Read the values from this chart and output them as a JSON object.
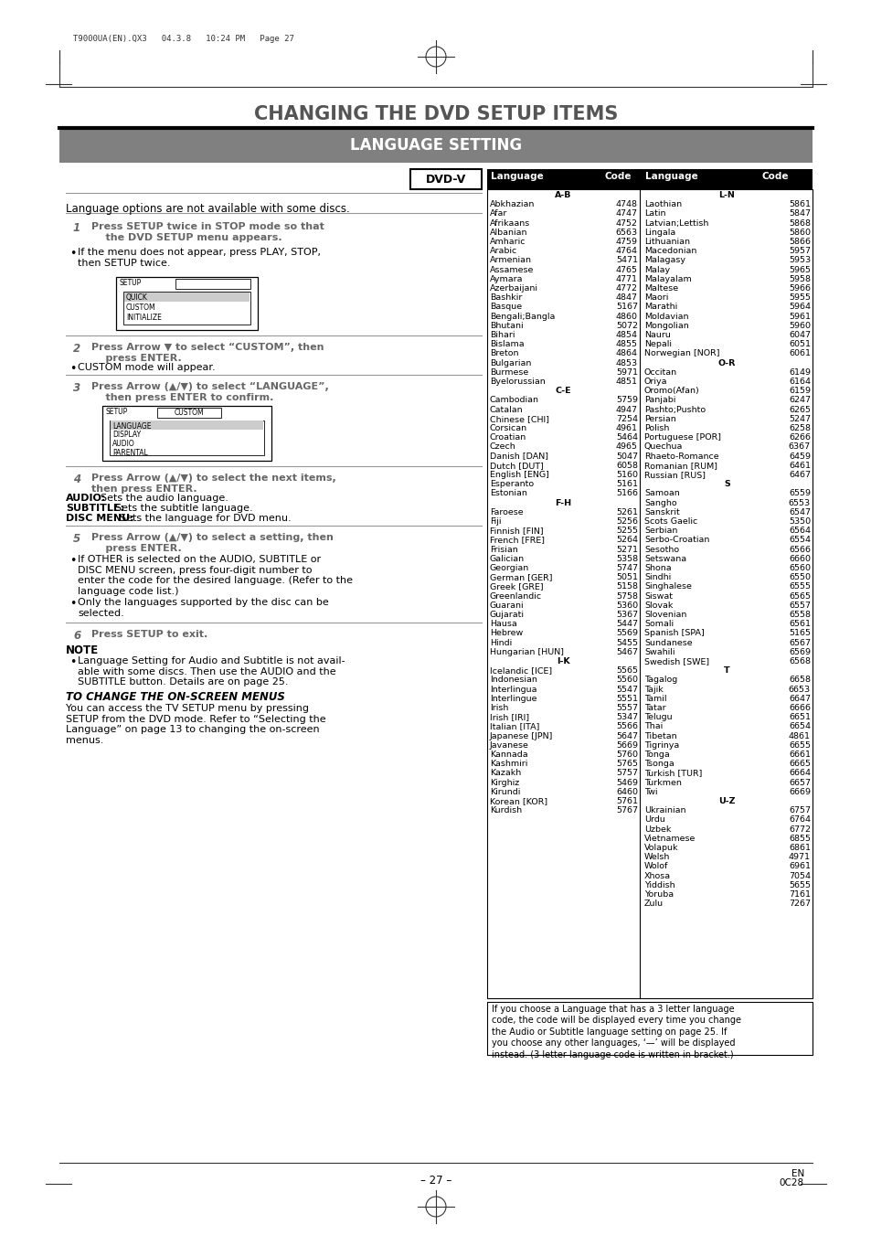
{
  "title": "CHANGING THE DVD SETUP ITEMS",
  "subtitle": "LANGUAGE SETTING",
  "header_text": "T9000UA(EN).QX3   04.3.8   10:24 PM   Page 27",
  "dvdv_label": "DVD-V",
  "intro_text": "Language options are not available with some discs.",
  "step1_bold": "Press SETUP twice in STOP mode so that\n    the DVD SETUP menu appears.",
  "step1_bullet": "If the menu does not appear, press PLAY, STOP,\nthen SETUP twice.",
  "step2_bold": "Press Arrow ▼ to select “CUSTOM”, then\n    press ENTER.",
  "step2_bullet": "CUSTOM mode will appear.",
  "step3_bold": "Press Arrow (▲/▼) to select “LANGUAGE”,\n    then press ENTER to confirm.",
  "step4_bold": "Press Arrow (▲/▼) to select the next items,\nthen press ENTER.",
  "step4_lines": [
    [
      "AUDIO:",
      "  Sets the audio language."
    ],
    [
      "SUBTITLE:",
      "  Sets the subtitle language."
    ],
    [
      "DISC MENU:",
      "  Sets the language for DVD menu."
    ]
  ],
  "step5_bold": "Press Arrow (▲/▼) to select a setting, then\n    press ENTER.",
  "step5_bullets": [
    "If OTHER is selected on the AUDIO, SUBTITLE or\nDISC MENU screen, press four-digit number to\nenter the code for the desired language. (Refer to the\nlanguage code list.)",
    "Only the languages supported by the disc can be\nselected."
  ],
  "step6_bold": "Press SETUP to exit.",
  "note_title": "NOTE",
  "note_bullet": "Language Setting for Audio and Subtitle is not avail-\nable with some discs. Then use the AUDIO and the\nSUBTITLE button. Details are on page 25.",
  "to_change_title": "TO CHANGE THE ON-SCREEN MENUS",
  "to_change_text": "You can access the TV SETUP menu by pressing\nSETUP from the DVD mode. Refer to “Selecting the\nLanguage” on page 13 to changing the on-screen\nmenus.",
  "footer_left": "– 27 –",
  "footer_right": "EN\n0C28",
  "lang_col1": [
    [
      "A-B",
      ""
    ],
    [
      "Abkhazian",
      "4748"
    ],
    [
      "Afar",
      "4747"
    ],
    [
      "Afrikaans",
      "4752"
    ],
    [
      "Albanian",
      "6563"
    ],
    [
      "Amharic",
      "4759"
    ],
    [
      "Arabic",
      "4764"
    ],
    [
      "Armenian",
      "5471"
    ],
    [
      "Assamese",
      "4765"
    ],
    [
      "Aymara",
      "4771"
    ],
    [
      "Azerbaijani",
      "4772"
    ],
    [
      "Bashkir",
      "4847"
    ],
    [
      "Basque",
      "5167"
    ],
    [
      "Bengali;Bangla",
      "4860"
    ],
    [
      "Bhutani",
      "5072"
    ],
    [
      "Bihari",
      "4854"
    ],
    [
      "Bislama",
      "4855"
    ],
    [
      "Breton",
      "4864"
    ],
    [
      "Bulgarian",
      "4853"
    ],
    [
      "Burmese",
      "5971"
    ],
    [
      "Byelorussian",
      "4851"
    ],
    [
      "C-E",
      ""
    ],
    [
      "Cambodian",
      "5759"
    ],
    [
      "Catalan",
      "4947"
    ],
    [
      "Chinese [CHI]",
      "7254"
    ],
    [
      "Corsican",
      "4961"
    ],
    [
      "Croatian",
      "5464"
    ],
    [
      "Czech",
      "4965"
    ],
    [
      "Danish [DAN]",
      "5047"
    ],
    [
      "Dutch [DUT]",
      "6058"
    ],
    [
      "English [ENG]",
      "5160"
    ],
    [
      "Esperanto",
      "5161"
    ],
    [
      "Estonian",
      "5166"
    ],
    [
      "F-H",
      ""
    ],
    [
      "Faroese",
      "5261"
    ],
    [
      "Fiji",
      "5256"
    ],
    [
      "Finnish [FIN]",
      "5255"
    ],
    [
      "French [FRE]",
      "5264"
    ],
    [
      "Frisian",
      "5271"
    ],
    [
      "Galician",
      "5358"
    ],
    [
      "Georgian",
      "5747"
    ],
    [
      "German [GER]",
      "5051"
    ],
    [
      "Greek [GRE]",
      "5158"
    ],
    [
      "Greenlandic",
      "5758"
    ],
    [
      "Guarani",
      "5360"
    ],
    [
      "Gujarati",
      "5367"
    ],
    [
      "Hausa",
      "5447"
    ],
    [
      "Hebrew",
      "5569"
    ],
    [
      "Hindi",
      "5455"
    ],
    [
      "Hungarian [HUN]",
      "5467"
    ],
    [
      "I-K",
      ""
    ],
    [
      "Icelandic [ICE]",
      "5565"
    ],
    [
      "Indonesian",
      "5560"
    ],
    [
      "Interlingua",
      "5547"
    ],
    [
      "Interlingue",
      "5551"
    ],
    [
      "Irish",
      "5557"
    ],
    [
      "Irish [IRI]",
      "5347"
    ],
    [
      "Italian [ITA]",
      "5566"
    ],
    [
      "Japanese [JPN]",
      "5647"
    ],
    [
      "Javanese",
      "5669"
    ],
    [
      "Kannada",
      "5760"
    ],
    [
      "Kashmiri",
      "5765"
    ],
    [
      "Kazakh",
      "5757"
    ],
    [
      "Kirghiz",
      "5469"
    ],
    [
      "Kirundi",
      "6460"
    ],
    [
      "Korean [KOR]",
      "5761"
    ],
    [
      "Kurdish",
      "5767"
    ]
  ],
  "lang_col2": [
    [
      "L-N",
      ""
    ],
    [
      "Laothian",
      "5861"
    ],
    [
      "Latin",
      "5847"
    ],
    [
      "Latvian;Lettish",
      "5868"
    ],
    [
      "Lingala",
      "5860"
    ],
    [
      "Lithuanian",
      "5866"
    ],
    [
      "Macedonian",
      "5957"
    ],
    [
      "Malagasy",
      "5953"
    ],
    [
      "Malay",
      "5965"
    ],
    [
      "Malayalam",
      "5958"
    ],
    [
      "Maltese",
      "5966"
    ],
    [
      "Maori",
      "5955"
    ],
    [
      "Marathi",
      "5964"
    ],
    [
      "Moldavian",
      "5961"
    ],
    [
      "Mongolian",
      "5960"
    ],
    [
      "Nauru",
      "6047"
    ],
    [
      "Nepali",
      "6051"
    ],
    [
      "Norwegian [NOR]",
      "6061"
    ],
    [
      "O-R",
      ""
    ],
    [
      "Occitan",
      "6149"
    ],
    [
      "Oriya",
      "6164"
    ],
    [
      "Oromo(Afan)",
      "6159"
    ],
    [
      "Panjabi",
      "6247"
    ],
    [
      "Pashto;Pushto",
      "6265"
    ],
    [
      "Persian",
      "5247"
    ],
    [
      "Polish",
      "6258"
    ],
    [
      "Portuguese [POR]",
      "6266"
    ],
    [
      "Quechua",
      "6367"
    ],
    [
      "Rhaeto-Romance",
      "6459"
    ],
    [
      "Romanian [RUM]",
      "6461"
    ],
    [
      "Russian [RUS]",
      "6467"
    ],
    [
      "S",
      ""
    ],
    [
      "Samoan",
      "6559"
    ],
    [
      "Sangho",
      "6553"
    ],
    [
      "Sanskrit",
      "6547"
    ],
    [
      "Scots Gaelic",
      "5350"
    ],
    [
      "Serbian",
      "6564"
    ],
    [
      "Serbo-Croatian",
      "6554"
    ],
    [
      "Sesotho",
      "6566"
    ],
    [
      "Setswana",
      "6660"
    ],
    [
      "Shona",
      "6560"
    ],
    [
      "Sindhi",
      "6550"
    ],
    [
      "Singhalese",
      "6555"
    ],
    [
      "Siswat",
      "6565"
    ],
    [
      "Slovak",
      "6557"
    ],
    [
      "Slovenian",
      "6558"
    ],
    [
      "Somali",
      "6561"
    ],
    [
      "Spanish [SPA]",
      "5165"
    ],
    [
      "Sundanese",
      "6567"
    ],
    [
      "Swahili",
      "6569"
    ],
    [
      "Swedish [SWE]",
      "6568"
    ],
    [
      "T",
      ""
    ],
    [
      "Tagalog",
      "6658"
    ],
    [
      "Tajik",
      "6653"
    ],
    [
      "Tamil",
      "6647"
    ],
    [
      "Tatar",
      "6666"
    ],
    [
      "Telugu",
      "6651"
    ],
    [
      "Thai",
      "6654"
    ],
    [
      "Tibetan",
      "4861"
    ],
    [
      "Tigrinya",
      "6655"
    ],
    [
      "Tonga",
      "6661"
    ],
    [
      "Tsonga",
      "6665"
    ],
    [
      "Turkish [TUR]",
      "6664"
    ],
    [
      "Turkmen",
      "6657"
    ],
    [
      "Twi",
      "6669"
    ],
    [
      "U-Z",
      ""
    ],
    [
      "Ukrainian",
      "6757"
    ],
    [
      "Urdu",
      "6764"
    ],
    [
      "Uzbek",
      "6772"
    ],
    [
      "Vietnamese",
      "6855"
    ],
    [
      "Volapuk",
      "6861"
    ],
    [
      "Welsh",
      "4971"
    ],
    [
      "Wolof",
      "6961"
    ],
    [
      "Xhosa",
      "7054"
    ],
    [
      "Yiddish",
      "5655"
    ],
    [
      "Yoruba",
      "7161"
    ],
    [
      "Zulu",
      "7267"
    ]
  ],
  "bottom_note": "If you choose a Language that has a 3 letter language\ncode, the code will be displayed every time you change\nthe Audio or Subtitle language setting on page 25. If\nyou choose any other languages, ‘—’ will be displayed\ninstead. (3 letter language code is written in bracket.)"
}
